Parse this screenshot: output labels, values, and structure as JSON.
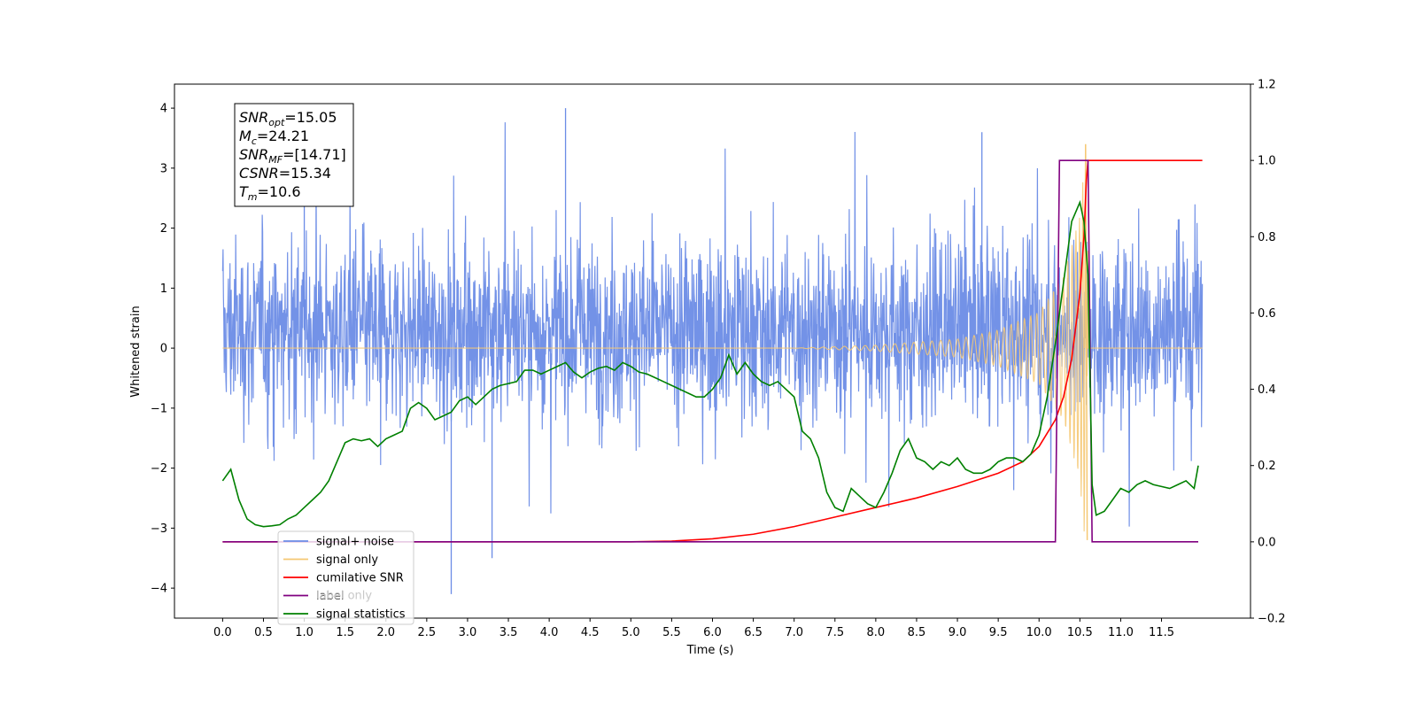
{
  "chart_data": {
    "type": "line",
    "xlabel": "Time (s)",
    "ylabel": "Whitened strain",
    "x_ticks": [
      0.0,
      0.5,
      1.0,
      1.5,
      2.0,
      2.5,
      3.0,
      3.5,
      4.0,
      4.5,
      5.0,
      5.5,
      6.0,
      6.5,
      7.0,
      7.5,
      8.0,
      8.5,
      9.0,
      9.5,
      10.0,
      10.5,
      11.0,
      11.5
    ],
    "x_tick_labels": [
      "0.0",
      "0.5",
      "1.0",
      "1.5",
      "2.0",
      "2.5",
      "3.0",
      "3.5",
      "4.0",
      "4.5",
      "5.0",
      "5.5",
      "6.0",
      "6.5",
      "7.0",
      "7.5",
      "8.0",
      "8.5",
      "9.0",
      "9.5",
      "10.0",
      "10.5",
      "11.0",
      "11.5"
    ],
    "xlim": [
      -0.59,
      12.59
    ],
    "ylim_left": [
      -4.5,
      4.4
    ],
    "ylim_right": [
      -0.2,
      1.2
    ],
    "y_ticks_left": [
      -4,
      -3,
      -2,
      -1,
      0,
      1,
      2,
      3,
      4
    ],
    "y_tick_labels_left": [
      "−4",
      "−3",
      "−2",
      "−1",
      "0",
      "1",
      "2",
      "3",
      "4"
    ],
    "y_ticks_right": [
      -0.2,
      0.0,
      0.2,
      0.4,
      0.6,
      0.8,
      1.0,
      1.2
    ],
    "y_tick_labels_right": [
      "−0.2",
      "0.0",
      "0.2",
      "0.4",
      "0.6",
      "0.8",
      "1.0",
      "1.2"
    ],
    "grid": false,
    "legend_placement": "lower-left",
    "annotation": {
      "lines": [
        {
          "sym": "SNR",
          "sub": "opt",
          "rest": "=15.05"
        },
        {
          "sym": "M",
          "sub": "c",
          "rest": "=24.21"
        },
        {
          "sym": "SNR",
          "sub": "MF",
          "rest": "=[14.71]"
        },
        {
          "sym": "CSNR",
          "sub": "",
          "rest": "=15.34"
        },
        {
          "sym": "T",
          "sub": "m",
          "rest": "=10.6"
        }
      ]
    },
    "legend": [
      {
        "label": "signal+ noise",
        "color": "#6b8ce6"
      },
      {
        "label": "signal only",
        "color": "#f5c873"
      },
      {
        "label": "cumilative SNR",
        "color": "#ff0000"
      },
      {
        "label": "label",
        "color": "#800080"
      },
      {
        "label": "label only",
        "color": "#c8c8c8"
      },
      {
        "label": "signal statistics",
        "color": "#008000"
      }
    ],
    "series": [
      {
        "name": "signal+ noise",
        "axis": "left",
        "color": "#6b8ce6",
        "x_range": [
          0.0,
          12.0
        ],
        "typical_band": [
          -1.6,
          2.2
        ],
        "notable_peaks": [
          [
            1.0,
            3.0
          ],
          [
            4.2,
            4.0
          ],
          [
            9.3,
            3.6
          ],
          [
            2.8,
            -4.1
          ],
          [
            3.3,
            -3.5
          ]
        ]
      },
      {
        "name": "signal only",
        "axis": "left",
        "color": "#f5c873",
        "description_points": [
          [
            0.0,
            0.0
          ],
          [
            7.0,
            0.0
          ],
          [
            8.0,
            0.05
          ],
          [
            9.0,
            0.15
          ],
          [
            9.5,
            0.3
          ],
          [
            10.0,
            0.6
          ],
          [
            10.3,
            1.2
          ],
          [
            10.5,
            2.2
          ],
          [
            10.57,
            3.4
          ],
          [
            10.6,
            -3.2
          ],
          [
            10.65,
            0.0
          ]
        ]
      },
      {
        "name": "cumilative SNR",
        "axis": "right",
        "color": "#ff0000",
        "x": [
          0.0,
          5.0,
          5.5,
          6.0,
          6.5,
          7.0,
          7.5,
          8.0,
          8.5,
          9.0,
          9.5,
          9.8,
          10.0,
          10.2,
          10.3,
          10.4,
          10.5,
          10.55,
          10.58,
          10.6,
          12.0
        ],
        "y": [
          0.0,
          0.0,
          0.002,
          0.008,
          0.02,
          0.04,
          0.065,
          0.09,
          0.115,
          0.145,
          0.18,
          0.21,
          0.25,
          0.32,
          0.38,
          0.48,
          0.65,
          0.8,
          0.95,
          1.0,
          1.0
        ]
      },
      {
        "name": "label",
        "axis": "right",
        "color": "#800080",
        "x": [
          0.0,
          10.2,
          10.25,
          10.6,
          10.65,
          11.95
        ],
        "y": [
          0.0,
          0.0,
          1.0,
          1.0,
          0.0,
          0.0
        ]
      },
      {
        "name": "signal statistics",
        "axis": "right",
        "color": "#008000",
        "x": [
          0.0,
          0.1,
          0.2,
          0.3,
          0.4,
          0.5,
          0.6,
          0.7,
          0.8,
          0.9,
          1.0,
          1.1,
          1.2,
          1.3,
          1.4,
          1.5,
          1.6,
          1.7,
          1.8,
          1.9,
          2.0,
          2.1,
          2.2,
          2.3,
          2.4,
          2.5,
          2.6,
          2.7,
          2.8,
          2.9,
          3.0,
          3.1,
          3.2,
          3.3,
          3.4,
          3.5,
          3.6,
          3.7,
          3.8,
          3.9,
          4.0,
          4.1,
          4.2,
          4.3,
          4.4,
          4.5,
          4.6,
          4.7,
          4.8,
          4.9,
          5.0,
          5.1,
          5.2,
          5.3,
          5.4,
          5.5,
          5.6,
          5.7,
          5.8,
          5.9,
          6.0,
          6.1,
          6.2,
          6.3,
          6.4,
          6.5,
          6.6,
          6.7,
          6.8,
          6.9,
          7.0,
          7.1,
          7.2,
          7.3,
          7.4,
          7.5,
          7.6,
          7.7,
          7.8,
          7.9,
          8.0,
          8.1,
          8.2,
          8.3,
          8.4,
          8.5,
          8.6,
          8.7,
          8.8,
          8.9,
          9.0,
          9.1,
          9.2,
          9.3,
          9.4,
          9.5,
          9.6,
          9.7,
          9.8,
          9.9,
          10.0,
          10.1,
          10.2,
          10.3,
          10.4,
          10.5,
          10.55,
          10.6,
          10.65,
          10.7,
          10.8,
          10.9,
          11.0,
          11.1,
          11.2,
          11.3,
          11.4,
          11.5,
          11.6,
          11.7,
          11.8,
          11.9,
          11.95
        ],
        "y": [
          0.16,
          0.19,
          0.11,
          0.06,
          0.045,
          0.04,
          0.042,
          0.045,
          0.06,
          0.07,
          0.09,
          0.11,
          0.13,
          0.16,
          0.21,
          0.26,
          0.27,
          0.265,
          0.27,
          0.25,
          0.27,
          0.28,
          0.29,
          0.35,
          0.365,
          0.35,
          0.32,
          0.33,
          0.34,
          0.37,
          0.38,
          0.36,
          0.38,
          0.4,
          0.41,
          0.415,
          0.42,
          0.45,
          0.45,
          0.44,
          0.45,
          0.46,
          0.47,
          0.445,
          0.43,
          0.445,
          0.455,
          0.46,
          0.45,
          0.47,
          0.46,
          0.445,
          0.44,
          0.43,
          0.42,
          0.41,
          0.4,
          0.39,
          0.38,
          0.38,
          0.4,
          0.43,
          0.49,
          0.44,
          0.47,
          0.44,
          0.42,
          0.41,
          0.42,
          0.4,
          0.38,
          0.29,
          0.27,
          0.22,
          0.13,
          0.09,
          0.08,
          0.14,
          0.12,
          0.1,
          0.09,
          0.13,
          0.18,
          0.24,
          0.27,
          0.22,
          0.21,
          0.19,
          0.21,
          0.2,
          0.22,
          0.19,
          0.18,
          0.18,
          0.19,
          0.21,
          0.22,
          0.22,
          0.21,
          0.23,
          0.28,
          0.38,
          0.52,
          0.68,
          0.84,
          0.89,
          0.84,
          0.7,
          0.15,
          0.07,
          0.08,
          0.11,
          0.14,
          0.13,
          0.15,
          0.16,
          0.15,
          0.145,
          0.14,
          0.15,
          0.16,
          0.14,
          0.2
        ]
      }
    ]
  }
}
